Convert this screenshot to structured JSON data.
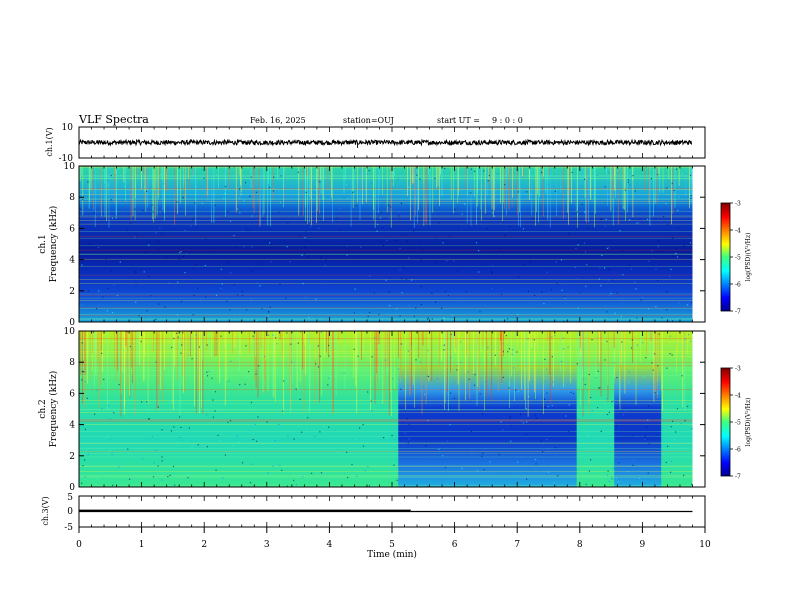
{
  "header": {
    "title": "VLF Spectra",
    "date": "Feb. 16, 2025",
    "station": "station=OUJ",
    "start_label": "start UT =",
    "start_time": "9 : 0 : 0"
  },
  "chart_data": [
    {
      "type": "line",
      "name": "ch1-waveform",
      "ylabel": "ch.1(V)",
      "ylim": [
        -10,
        10
      ],
      "yticks": [
        "10",
        "-10"
      ],
      "xlim": [
        0,
        10
      ],
      "x_end": 9.8,
      "baseline": 0,
      "amplitude_range": [
        -1.5,
        1.5
      ],
      "spikes": [
        {
          "x": 0.92,
          "y": 2.0
        },
        {
          "x": 4.45,
          "y": -3.5
        }
      ]
    },
    {
      "type": "heatmap",
      "name": "ch1-spectrogram",
      "ylabel": "Frequency (kHz)",
      "channel_label": "ch.1",
      "xlim": [
        0,
        10
      ],
      "ylim": [
        0,
        10
      ],
      "yticks": [
        "0",
        "2",
        "4",
        "6",
        "8",
        "10"
      ],
      "x_end": 9.8,
      "colorbar": {
        "label": "log(PSD)(V²/Hz)",
        "range": [
          -7,
          -3
        ],
        "ticks": [
          "-3",
          "-4",
          "-5",
          "-6",
          "-7"
        ]
      }
    },
    {
      "type": "heatmap",
      "name": "ch2-spectrogram",
      "ylabel": "Frequency (kHz)",
      "channel_label": "ch.2",
      "xlim": [
        0,
        10
      ],
      "ylim": [
        0,
        10
      ],
      "yticks": [
        "0",
        "2",
        "4",
        "6",
        "8",
        "10"
      ],
      "x_end": 9.8,
      "quiet_intervals": [
        [
          5.1,
          7.95
        ],
        [
          8.55,
          9.3
        ]
      ],
      "colorbar": {
        "label": "log(PSD)(V²/Hz)",
        "range": [
          -7,
          -3
        ],
        "ticks": [
          "-3",
          "-4",
          "-5",
          "-6",
          "-7"
        ]
      }
    },
    {
      "type": "line",
      "name": "ch3-level",
      "ylabel": "ch.3(V)",
      "ylim": [
        -5,
        5
      ],
      "yticks": [
        "5",
        "0",
        "-5"
      ],
      "xlim": [
        0,
        10
      ],
      "xticks": [
        "0",
        "1",
        "2",
        "3",
        "4",
        "5",
        "6",
        "7",
        "8",
        "9",
        "10"
      ],
      "xlabel": "Time (min)",
      "segments": [
        {
          "x": [
            0,
            5.3
          ],
          "y": 0.2
        },
        {
          "x": [
            5.3,
            9.8
          ],
          "y": 0
        }
      ]
    }
  ],
  "colors": {
    "background": "#ffffff",
    "axes": "#000000"
  }
}
